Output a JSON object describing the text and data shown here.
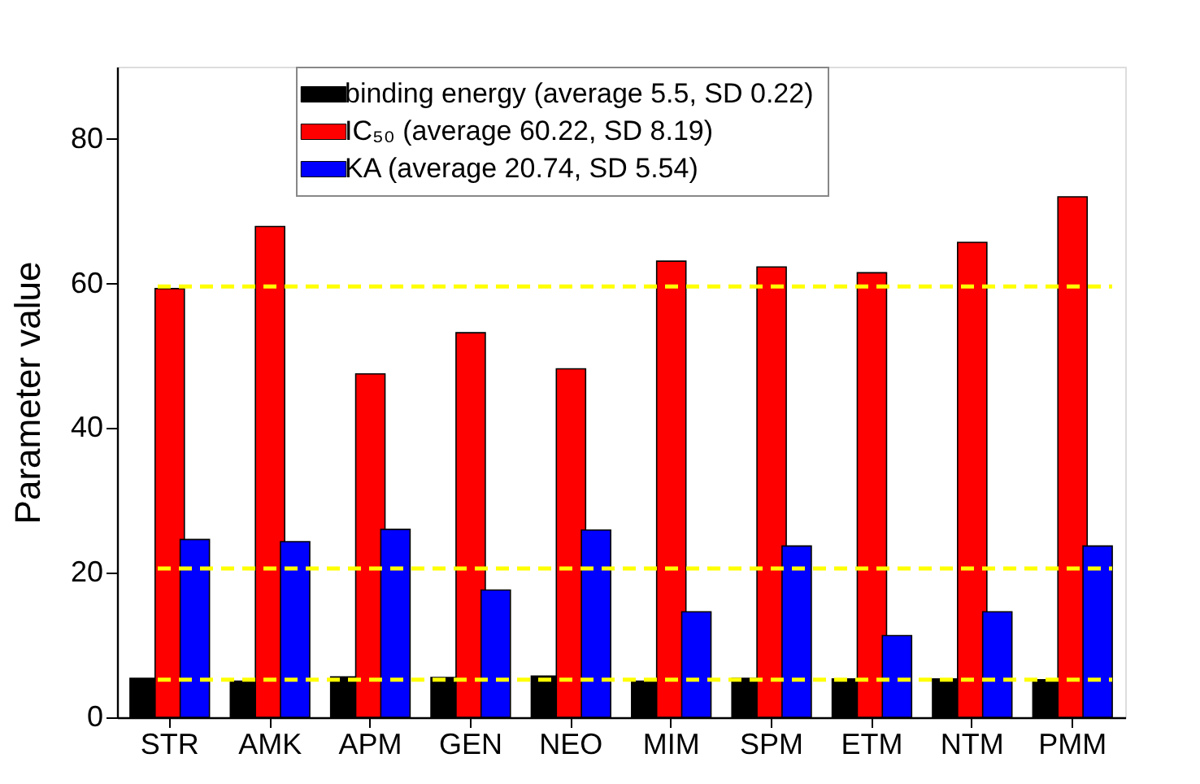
{
  "chart_data": {
    "type": "bar",
    "ylabel": "Parameter value",
    "categories": [
      "STR",
      "AMK",
      "APM",
      "GEN",
      "NEO",
      "MIM",
      "SPM",
      "ETM",
      "NTM",
      "PMM"
    ],
    "series": [
      {
        "name": "binding energy (average 5.5, SD 0.22)",
        "color": "#000000",
        "values": [
          5.4,
          5.0,
          5.6,
          5.5,
          5.7,
          5.0,
          5.4,
          5.3,
          5.3,
          5.2
        ]
      },
      {
        "name": "IC₅₀ (average 60.22, SD 8.19)",
        "color": "#ff0000",
        "values": [
          59.3,
          67.9,
          47.5,
          53.2,
          48.2,
          63.1,
          62.3,
          61.5,
          65.7,
          72.0
        ]
      },
      {
        "name": "KA (average  20.74, SD 5.54)",
        "color": "#0000ff",
        "values": [
          24.6,
          24.3,
          26.0,
          17.6,
          25.9,
          14.6,
          23.7,
          11.3,
          14.6,
          23.7
        ]
      }
    ],
    "ylim": [
      0,
      90
    ],
    "yticks": [
      0,
      20,
      40,
      60,
      80
    ],
    "ref_lines": [
      {
        "axis": "y",
        "value": 59.6,
        "color": "#ffff00",
        "line_style": "dashed"
      },
      {
        "axis": "y",
        "value": 20.6,
        "color": "#ffff00",
        "line_style": "dashed"
      },
      {
        "axis": "y",
        "value": 5.2,
        "color": "#ffff00",
        "line_style": "dashed"
      }
    ],
    "grid": false,
    "legend": "top"
  }
}
